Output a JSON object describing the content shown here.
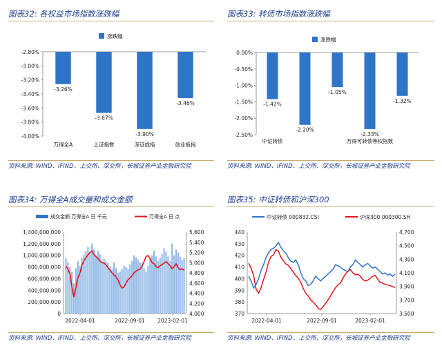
{
  "panels": [
    {
      "title": "图表32: 各权益市场指数涨跌幅",
      "source": "资料来源: WIND、IFIND、上交所、深交所，长城证券产业金融研究院"
    },
    {
      "title": "图表33: 转债市场指数涨跌幅",
      "source": "资料来源: WIND、IFIND、上交所、深交所，长城证券产业金融研究院"
    },
    {
      "title": "图表34: 万得全A成交量和成交金额",
      "source": "资料来源: WIND、IFIND、上交所、深交所，长城证券产业金融研究院"
    },
    {
      "title": "图表35: 中证转债和沪深300",
      "source": "资料来源: WIND、IFIND、上交所、深交所，长城证券产业金融研究院"
    }
  ],
  "colors": {
    "blue": "#2e75c8",
    "red": "#e3141a",
    "title": "#1f3f8f",
    "rule": "#c9a96a"
  },
  "chart_data": [
    {
      "type": "bar",
      "legend": [
        "涨跌幅"
      ],
      "legend_position": "top-right",
      "categories": [
        "万得全A",
        "上证指数",
        "深证成指",
        "创业板指"
      ],
      "values": [
        -3.26,
        -3.67,
        -3.9,
        -3.46
      ],
      "value_labels": [
        "-3.26%",
        "-3.67%",
        "-3.90%",
        "-3.46%"
      ],
      "ylim": [
        -4.0,
        -2.8
      ],
      "yticks": [
        "-2.80%",
        "-3.00%",
        "-3.20%",
        "-3.40%",
        "-3.60%",
        "-3.80%",
        "-4.00%"
      ]
    },
    {
      "type": "bar",
      "legend": [
        "涨跌幅"
      ],
      "legend_position": "top-right",
      "categories": [
        "中证转债",
        "",
        "",
        "万得可转债等权指数",
        ""
      ],
      "values": [
        -1.42,
        -2.2,
        -1.05,
        -2.33,
        -1.32
      ],
      "value_labels": [
        "-1.42%",
        "-2.20%",
        "-1.05%",
        "-2.33%",
        "-1.32%"
      ],
      "ylim": [
        -2.5,
        0
      ],
      "yticks": [
        "0.00%",
        "-0.50%",
        "-1.00%",
        "-1.50%",
        "-2.00%",
        "-2.50%"
      ]
    },
    {
      "type": "bar+line",
      "legend": [
        "成交金额:万得全A 日 千元",
        "万得全A 日 点"
      ],
      "legend_position": "top",
      "xticks": [
        "2022-04-01",
        "2022-09-01",
        "2023-02-01"
      ],
      "yticks_left": [
        "0",
        "200,000,000",
        "400,000,000",
        "600,000,000",
        "800,000,000",
        "1,000,000,000",
        "1,200,000,000",
        "1,400,000,000"
      ],
      "yticks_right": [
        "4,000",
        "4,200",
        "4,400",
        "4,600",
        "4,800",
        "5,000",
        "5,200",
        "5,400",
        "5,600"
      ],
      "ylim_left": [
        0,
        1400000000
      ],
      "ylim_right": [
        4000,
        5600
      ],
      "bar_series_thousand_yuan": [
        950000000,
        880000000,
        800000000,
        720000000,
        520000000,
        780000000,
        900000000,
        820000000,
        960000000,
        1010000000,
        1080000000,
        1150000000,
        1050000000,
        1200000000,
        1100000000,
        1000000000,
        1080000000,
        1020000000,
        880000000,
        940000000,
        900000000,
        870000000,
        810000000,
        760000000,
        880000000,
        780000000,
        700000000,
        720000000,
        760000000,
        820000000,
        800000000,
        760000000,
        840000000,
        900000000,
        1000000000,
        960000000,
        920000000,
        880000000,
        860000000,
        780000000,
        720000000,
        820000000,
        940000000,
        1000000000,
        1080000000,
        980000000,
        900000000,
        960000000,
        1020000000,
        1120000000,
        1060000000,
        980000000,
        900000000,
        1200000000,
        1000000000,
        1100000000,
        1050000000,
        980000000,
        920000000,
        950000000
      ],
      "line_series_points": [
        4930,
        4870,
        4780,
        4520,
        4320,
        4520,
        4700,
        4800,
        4950,
        5030,
        5100,
        5150,
        5200,
        5230,
        5160,
        5120,
        5080,
        5030,
        5000,
        4990,
        4960,
        4900,
        4850,
        4800,
        4760,
        4720,
        4660,
        4560,
        4500,
        4520,
        4600,
        4660,
        4700,
        4740,
        4800,
        4830,
        4860,
        4870,
        4930,
        5020,
        5120,
        5140,
        5080,
        5000,
        4980,
        4920,
        4900,
        4940,
        4960,
        4990,
        5020,
        4980,
        4940,
        4880,
        4920,
        4980,
        4900,
        4860,
        4880,
        4850
      ]
    },
    {
      "type": "line",
      "legend": [
        "中证转债 000832.CSI",
        "沪深300 000300.SH"
      ],
      "legend_position": "top",
      "xticks": [
        "2022-04-01",
        "2022-09-01",
        "2023-02-01"
      ],
      "yticks_left": [
        "370",
        "380",
        "390",
        "400",
        "410",
        "420",
        "430",
        "440"
      ],
      "yticks_right": [
        "3,500",
        "3,700",
        "3,900",
        "4,100",
        "4,300",
        "4,500",
        "4,700"
      ],
      "ylim_left": [
        370,
        440
      ],
      "ylim_right": [
        3500,
        4700
      ],
      "series": [
        {
          "name": "中证转债 000832.CSI",
          "axis": "left",
          "values": [
            402,
            398,
            392,
            395,
            400,
            407,
            412,
            418,
            422,
            425,
            426,
            428,
            431,
            427,
            424,
            422,
            418,
            415,
            414,
            416,
            412,
            405,
            400,
            398,
            394,
            395,
            398,
            402,
            400,
            398,
            400,
            402,
            404,
            406,
            408,
            412,
            411,
            410,
            408,
            407,
            406,
            410,
            412,
            416,
            414,
            412,
            410,
            412,
            413,
            411,
            409,
            410,
            408,
            406,
            404,
            405,
            403,
            404,
            402,
            404
          ]
        },
        {
          "name": "沪深300 000300.SH",
          "axis": "right",
          "values": [
            4240,
            4170,
            4060,
            3860,
            3800,
            3880,
            4000,
            4110,
            4250,
            4340,
            4360,
            4440,
            4420,
            4330,
            4280,
            4230,
            4210,
            4160,
            4110,
            4060,
            4020,
            3960,
            3870,
            3800,
            3760,
            3700,
            3670,
            3630,
            3580,
            3560,
            3600,
            3650,
            3700,
            3760,
            3820,
            3880,
            3920,
            3950,
            4020,
            4080,
            4120,
            4150,
            4100,
            4070,
            4080,
            4050,
            4000,
            3980,
            3990,
            4020,
            4050,
            4060,
            4010,
            3960,
            3950,
            3930,
            3920,
            3910,
            3900,
            3880
          ]
        }
      ]
    }
  ]
}
